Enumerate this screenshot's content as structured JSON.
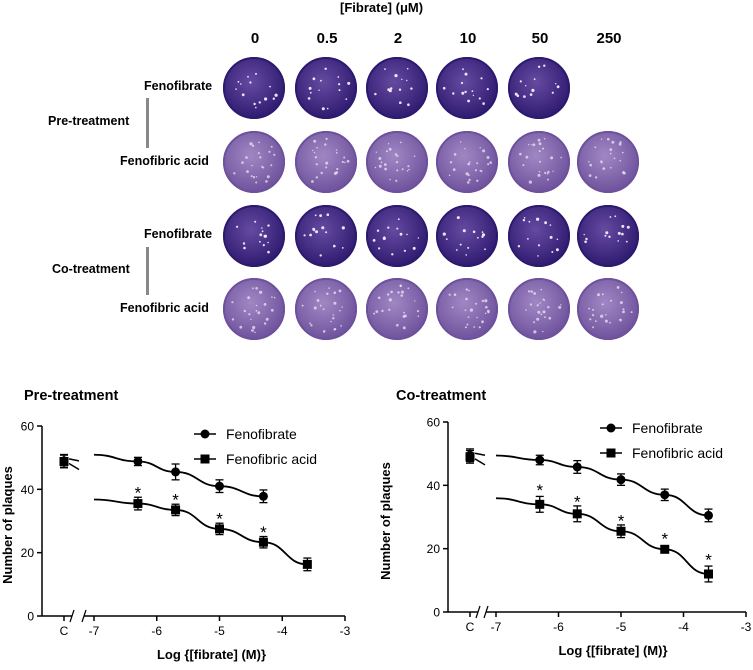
{
  "header": {
    "title": "[Fibrate] (μM)"
  },
  "concentrations": [
    "0",
    "0.5",
    "2",
    "10",
    "50",
    "250"
  ],
  "plate_rows": [
    {
      "label": "Fenofibrate",
      "group": "pre",
      "dark": true,
      "count": 5
    },
    {
      "label": "Fenofibric acid",
      "group": "pre",
      "dark": false,
      "count": 6
    },
    {
      "label": "Fenofibrate",
      "group": "co",
      "dark": true,
      "count": 6
    },
    {
      "label": "Fenofibric acid",
      "group": "co",
      "dark": false,
      "count": 6
    }
  ],
  "groups": {
    "pre": "Pre-treatment",
    "co": "Co-treatment"
  },
  "colors": {
    "plate_dark": "#4a2a8f",
    "plate_light": "#8f72b8",
    "rim_dark": "#2d1a6e",
    "rim_light": "#6d519c"
  },
  "chart_data": [
    {
      "type": "scatter",
      "title": "Pre-treatment",
      "xlabel": "Log {[fibrate] (M)}",
      "ylabel": "Number of plaques",
      "ylim": [
        0,
        60
      ],
      "xlim": [
        -7,
        -3
      ],
      "yticks": [
        "0",
        "20",
        "40",
        "60"
      ],
      "xticks": [
        "-7",
        "-6",
        "-5",
        "-4",
        "-3"
      ],
      "control_label": "C",
      "legend_position": "top-right",
      "series": [
        {
          "name": "Fenofibrate",
          "marker": "circle",
          "control": {
            "y": 49,
            "err": 2
          },
          "points": [
            {
              "x": -6.3,
              "y": 48.8,
              "err": 1.3
            },
            {
              "x": -5.7,
              "y": 45.5,
              "err": 2.5
            },
            {
              "x": -5.0,
              "y": 41.0,
              "err": 2.0
            },
            {
              "x": -4.3,
              "y": 37.8,
              "err": 2.0
            }
          ]
        },
        {
          "name": "Fenofibric acid",
          "marker": "square",
          "control": {
            "y": 48.8,
            "err": 2
          },
          "points": [
            {
              "x": -6.3,
              "y": 35.5,
              "err": 2.0
            },
            {
              "x": -5.7,
              "y": 33.5,
              "err": 1.8
            },
            {
              "x": -5.0,
              "y": 27.5,
              "err": 1.8
            },
            {
              "x": -4.3,
              "y": 23.3,
              "err": 1.8
            },
            {
              "x": -3.6,
              "y": 16.3,
              "err": 2.0
            }
          ]
        }
      ],
      "annotations": [
        {
          "x": -6.3,
          "y": 40,
          "text": "*"
        },
        {
          "x": -5.7,
          "y": 37.8,
          "text": "*"
        },
        {
          "x": -5.0,
          "y": 31.8,
          "text": "*"
        },
        {
          "x": -4.3,
          "y": 27.5,
          "text": "*"
        }
      ]
    },
    {
      "type": "scatter",
      "title": "Co-treatment",
      "xlabel": "Log {[fibrate] (M)}",
      "ylabel": "Number of plaques",
      "ylim": [
        0,
        60
      ],
      "xlim": [
        -7,
        -3
      ],
      "yticks": [
        "0",
        "20",
        "40",
        "60"
      ],
      "xticks": [
        "-7",
        "-6",
        "-5",
        "-4",
        "-3"
      ],
      "control_label": "C",
      "legend_position": "top-right",
      "series": [
        {
          "name": "Fenofibrate",
          "marker": "circle",
          "control": {
            "y": 49.5,
            "err": 2
          },
          "points": [
            {
              "x": -6.3,
              "y": 48.0,
              "err": 1.5
            },
            {
              "x": -5.7,
              "y": 45.8,
              "err": 2.0
            },
            {
              "x": -5.0,
              "y": 41.8,
              "err": 1.8
            },
            {
              "x": -4.3,
              "y": 37.0,
              "err": 1.8
            },
            {
              "x": -3.6,
              "y": 30.5,
              "err": 2.0
            }
          ]
        },
        {
          "name": "Fenofibric acid",
          "marker": "square",
          "control": {
            "y": 49.0,
            "err": 2
          },
          "points": [
            {
              "x": -6.3,
              "y": 34.0,
              "err": 2.5
            },
            {
              "x": -5.7,
              "y": 31.0,
              "err": 2.5
            },
            {
              "x": -5.0,
              "y": 25.5,
              "err": 2.0
            },
            {
              "x": -4.3,
              "y": 19.8,
              "err": 0.8
            },
            {
              "x": -3.6,
              "y": 12.0,
              "err": 2.5
            }
          ]
        }
      ],
      "annotations": [
        {
          "x": -6.3,
          "y": 39.5,
          "text": "*"
        },
        {
          "x": -5.7,
          "y": 35.8,
          "text": "*"
        },
        {
          "x": -5.0,
          "y": 29.8,
          "text": "*"
        },
        {
          "x": -4.3,
          "y": 24.2,
          "text": "*"
        },
        {
          "x": -3.6,
          "y": 17.6,
          "text": "*"
        }
      ]
    }
  ]
}
